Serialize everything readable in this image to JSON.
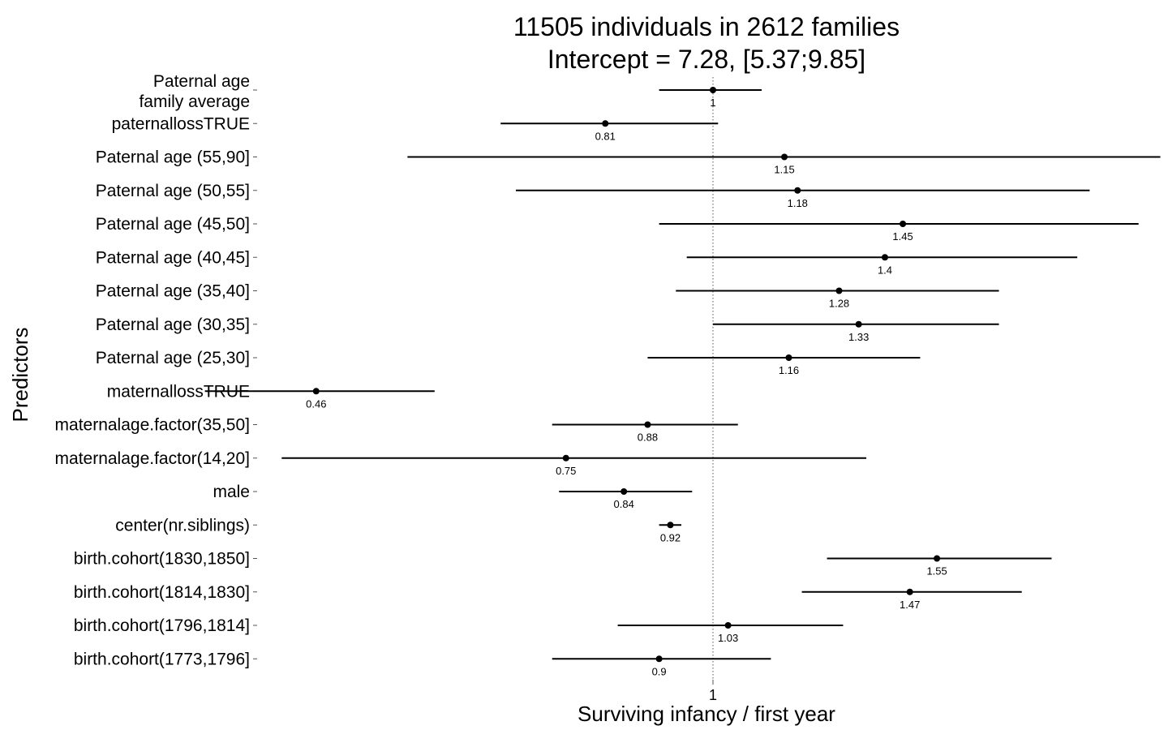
{
  "chart_data": {
    "type": "forest",
    "title": [
      "11505 individuals in 2612 families",
      "Intercept = 7.28, [5.37;9.85]"
    ],
    "xlabel": "Surviving infancy / first year",
    "ylabel": "Predictors",
    "x_scale": "log",
    "xlim": [
      0.3,
      3.0
    ],
    "xticks": [
      1
    ],
    "xtick_labels": [
      "1"
    ],
    "reference_line": 1,
    "grid": false,
    "legend": "none",
    "rows": [
      {
        "label": [
          "Paternal age",
          "family average"
        ],
        "estimate": 1,
        "label_text": "1",
        "lower": 0.9,
        "upper": 1.1
      },
      {
        "label": [
          "paternallossTRUE"
        ],
        "estimate": 0.81,
        "label_text": "0.81",
        "lower": 0.66,
        "upper": 1.01
      },
      {
        "label": [
          "Paternal age (55,90]"
        ],
        "estimate": 1.15,
        "label_text": "1.15",
        "lower": 0.55,
        "upper": 2.4
      },
      {
        "label": [
          "Paternal age (50,55]"
        ],
        "estimate": 1.18,
        "label_text": "1.18",
        "lower": 0.68,
        "upper": 2.09
      },
      {
        "label": [
          "Paternal age (45,50]"
        ],
        "estimate": 1.45,
        "label_text": "1.45",
        "lower": 0.9,
        "upper": 2.3
      },
      {
        "label": [
          "Paternal age (40,45]"
        ],
        "estimate": 1.4,
        "label_text": "1.4",
        "lower": 0.95,
        "upper": 2.04
      },
      {
        "label": [
          "Paternal age (35,40]"
        ],
        "estimate": 1.28,
        "label_text": "1.28",
        "lower": 0.93,
        "upper": 1.75
      },
      {
        "label": [
          "Paternal age (30,35]"
        ],
        "estimate": 1.33,
        "label_text": "1.33",
        "lower": 1.0,
        "upper": 1.75
      },
      {
        "label": [
          "Paternal age (25,30]"
        ],
        "estimate": 1.16,
        "label_text": "1.16",
        "lower": 0.88,
        "upper": 1.5
      },
      {
        "label": [
          "maternallossTRUE"
        ],
        "estimate": 0.46,
        "label_text": "0.46",
        "lower": 0.37,
        "upper": 0.58
      },
      {
        "label": [
          "maternalage.factor(35,50]"
        ],
        "estimate": 0.88,
        "label_text": "0.88",
        "lower": 0.73,
        "upper": 1.05
      },
      {
        "label": [
          "maternalage.factor(14,20]"
        ],
        "estimate": 0.75,
        "label_text": "0.75",
        "lower": 0.43,
        "upper": 1.35
      },
      {
        "label": [
          "male"
        ],
        "estimate": 0.84,
        "label_text": "0.84",
        "lower": 0.74,
        "upper": 0.96
      },
      {
        "label": [
          "center(nr.siblings)"
        ],
        "estimate": 0.92,
        "label_text": "0.92",
        "lower": 0.9,
        "upper": 0.94
      },
      {
        "label": [
          "birth.cohort(1830,1850]"
        ],
        "estimate": 1.55,
        "label_text": "1.55",
        "lower": 1.25,
        "upper": 1.94
      },
      {
        "label": [
          "birth.cohort(1814,1830]"
        ],
        "estimate": 1.47,
        "label_text": "1.47",
        "lower": 1.19,
        "upper": 1.83
      },
      {
        "label": [
          "birth.cohort(1796,1814]"
        ],
        "estimate": 1.03,
        "label_text": "1.03",
        "lower": 0.83,
        "upper": 1.29
      },
      {
        "label": [
          "birth.cohort(1773,1796]"
        ],
        "estimate": 0.9,
        "label_text": "0.9",
        "lower": 0.73,
        "upper": 1.12
      }
    ]
  }
}
